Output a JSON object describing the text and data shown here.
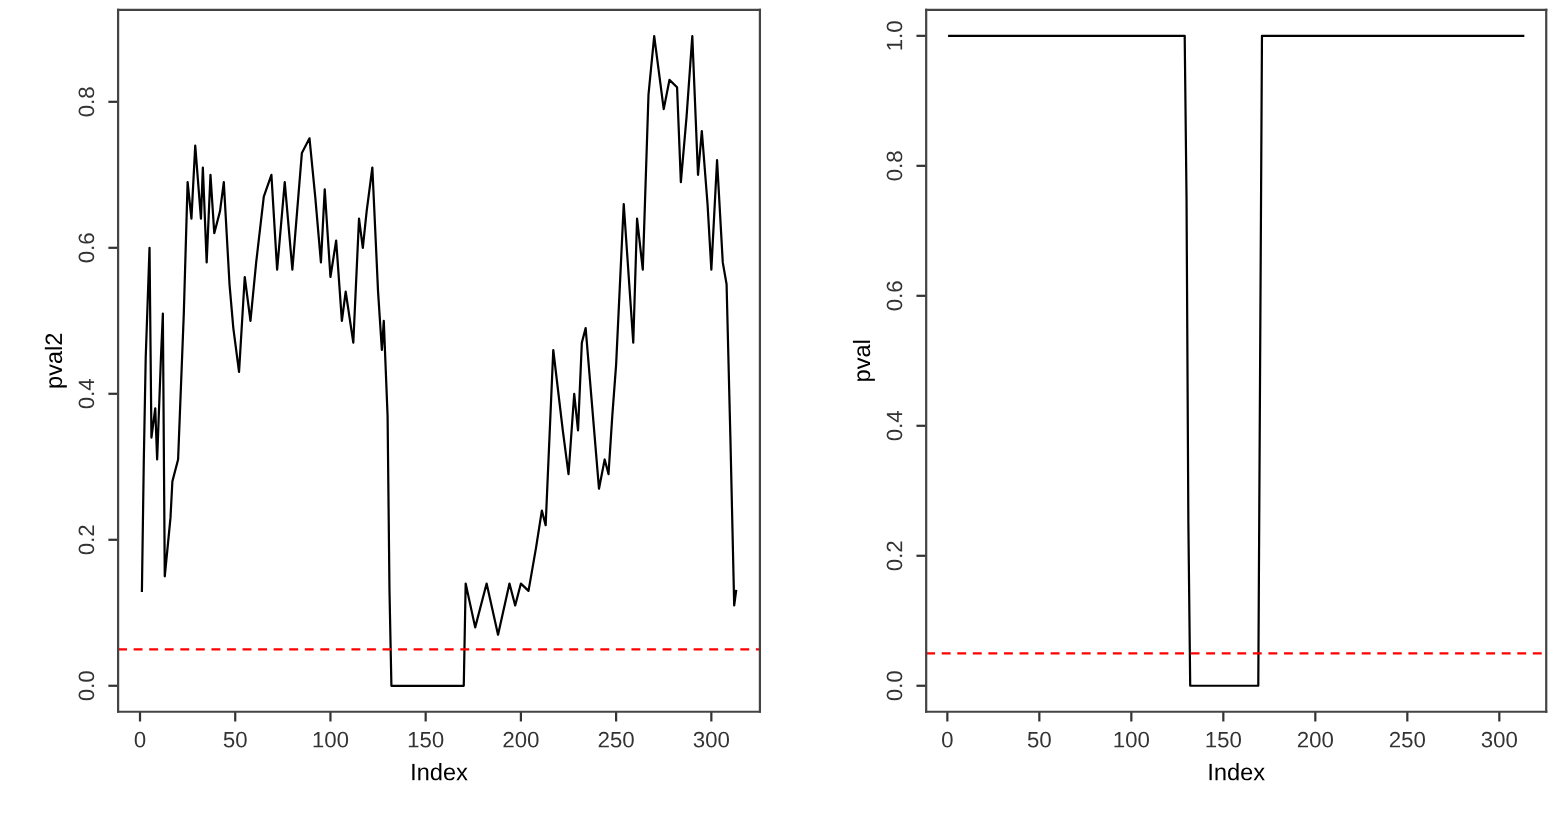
{
  "chart_data": [
    {
      "type": "line",
      "xlabel": "Index",
      "ylabel": "pval2",
      "xlim": [
        -11.5,
        325.5
      ],
      "ylim": [
        -0.0356,
        0.926
      ],
      "xticks": [
        0,
        50,
        100,
        150,
        200,
        250,
        300
      ],
      "yticks": [
        {
          "value": 0,
          "label": "0.0"
        },
        {
          "value": 0.2,
          "label": "0.2"
        },
        {
          "value": 0.4,
          "label": "0.4"
        },
        {
          "value": 0.6,
          "label": "0.6"
        },
        {
          "value": 0.8,
          "label": "0.8"
        }
      ],
      "grid": false,
      "marker": "none",
      "line_style": "solid",
      "series": [
        {
          "color": "#000000",
          "x": [
            1,
            2,
            3,
            5,
            6,
            8,
            9,
            11,
            12,
            13,
            16,
            17,
            20,
            23,
            25,
            27,
            29,
            32,
            33,
            35,
            37,
            39,
            42,
            44,
            47,
            49,
            52,
            55,
            58,
            61,
            65,
            69,
            72,
            76,
            80,
            85,
            89,
            92,
            95,
            97,
            100,
            103,
            106,
            108,
            112,
            115,
            117,
            119,
            122,
            125,
            127,
            128,
            130,
            131,
            132,
            170,
            171,
            176,
            182,
            188,
            194,
            197,
            200,
            204,
            208,
            211,
            213,
            217,
            222,
            225,
            228,
            230,
            232,
            234,
            241,
            244,
            246,
            248,
            250,
            254,
            259,
            261,
            264,
            267,
            270,
            275,
            278,
            282,
            284,
            287,
            290,
            293,
            295,
            298,
            300,
            303,
            306,
            308,
            310,
            312,
            313
          ],
          "values": [
            0.13,
            0.31,
            0.45,
            0.6,
            0.34,
            0.38,
            0.31,
            0.45,
            0.51,
            0.15,
            0.23,
            0.28,
            0.31,
            0.51,
            0.69,
            0.64,
            0.74,
            0.64,
            0.71,
            0.58,
            0.7,
            0.62,
            0.65,
            0.69,
            0.55,
            0.49,
            0.43,
            0.56,
            0.5,
            0.58,
            0.67,
            0.7,
            0.57,
            0.69,
            0.57,
            0.73,
            0.75,
            0.67,
            0.58,
            0.68,
            0.56,
            0.61,
            0.5,
            0.54,
            0.47,
            0.64,
            0.6,
            0.65,
            0.71,
            0.54,
            0.46,
            0.5,
            0.37,
            0.13,
            0,
            0,
            0.14,
            0.08,
            0.14,
            0.07,
            0.14,
            0.11,
            0.14,
            0.13,
            0.19,
            0.24,
            0.22,
            0.46,
            0.35,
            0.29,
            0.4,
            0.35,
            0.47,
            0.49,
            0.27,
            0.31,
            0.29,
            0.37,
            0.44,
            0.66,
            0.47,
            0.64,
            0.57,
            0.81,
            0.89,
            0.79,
            0.83,
            0.82,
            0.69,
            0.78,
            0.89,
            0.7,
            0.76,
            0.66,
            0.57,
            0.72,
            0.58,
            0.55,
            0.34,
            0.11,
            0.13
          ]
        }
      ],
      "ref_lines": [
        {
          "axis": "y",
          "value": 0.05,
          "color": "#ff0000",
          "line_style": "dashed"
        }
      ]
    },
    {
      "type": "line",
      "xlabel": "Index",
      "ylabel": "pval",
      "xlim": [
        -11.5,
        325.5
      ],
      "ylim": [
        -0.04,
        1.04
      ],
      "xticks": [
        0,
        50,
        100,
        150,
        200,
        250,
        300
      ],
      "yticks": [
        {
          "value": 0,
          "label": "0.0"
        },
        {
          "value": 0.2,
          "label": "0.2"
        },
        {
          "value": 0.4,
          "label": "0.4"
        },
        {
          "value": 0.6,
          "label": "0.6"
        },
        {
          "value": 0.8,
          "label": "0.8"
        },
        {
          "value": 1,
          "label": "1.0"
        }
      ],
      "grid": false,
      "marker": "none",
      "line_style": "solid",
      "series": [
        {
          "color": "#000000",
          "x": [
            1,
            129,
            130,
            131,
            132,
            169,
            170,
            171,
            313
          ],
          "values": [
            1,
            1,
            0.75,
            0.25,
            0,
            0,
            0.5,
            1,
            1
          ]
        }
      ],
      "ref_lines": [
        {
          "axis": "y",
          "value": 0.05,
          "color": "#ff0000",
          "line_style": "dashed"
        }
      ]
    }
  ]
}
